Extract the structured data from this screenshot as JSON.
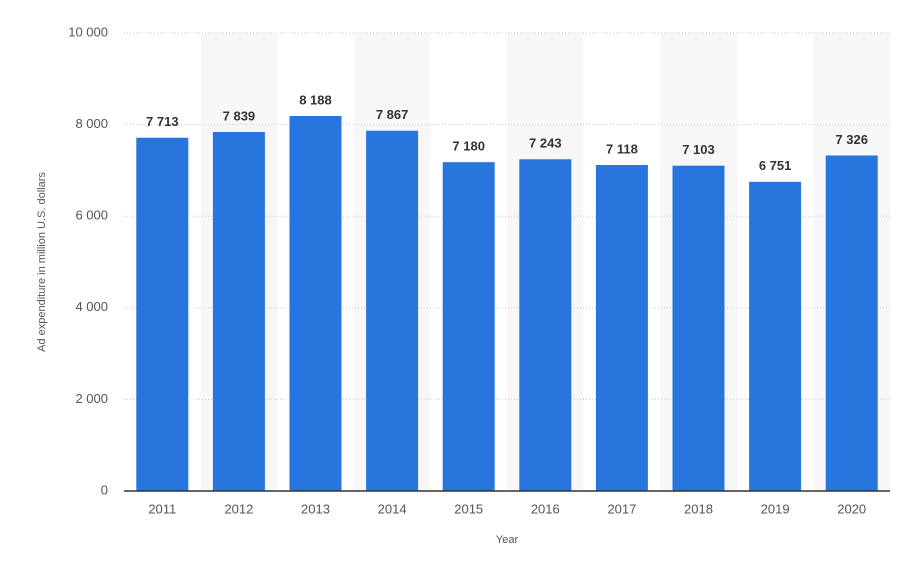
{
  "chart_data": {
    "type": "bar",
    "x_label": "Year",
    "y_label": "Ad expenditure in million U.S. dollars",
    "categories": [
      "2011",
      "2012",
      "2013",
      "2014",
      "2015",
      "2016",
      "2017",
      "2018",
      "2019",
      "2020"
    ],
    "values": [
      7713,
      7839,
      8188,
      7867,
      7180,
      7243,
      7118,
      7103,
      6751,
      7326
    ],
    "value_labels": [
      "7 713",
      "7 839",
      "8 188",
      "7 867",
      "7 180",
      "7 243",
      "7 118",
      "7 103",
      "6 751",
      "7 326"
    ],
    "color": "#2876dd",
    "ylim": [
      0,
      10000
    ],
    "yticks": [
      0,
      {
        "value": 2000,
        "label": "2 000"
      },
      {
        "value": 4000,
        "label": "4 000"
      },
      {
        "value": 6000,
        "label": "6 000"
      },
      {
        "value": 8000,
        "label": "8 000"
      },
      {
        "value": 10000,
        "label": "10 000"
      }
    ],
    "grid": true
  }
}
